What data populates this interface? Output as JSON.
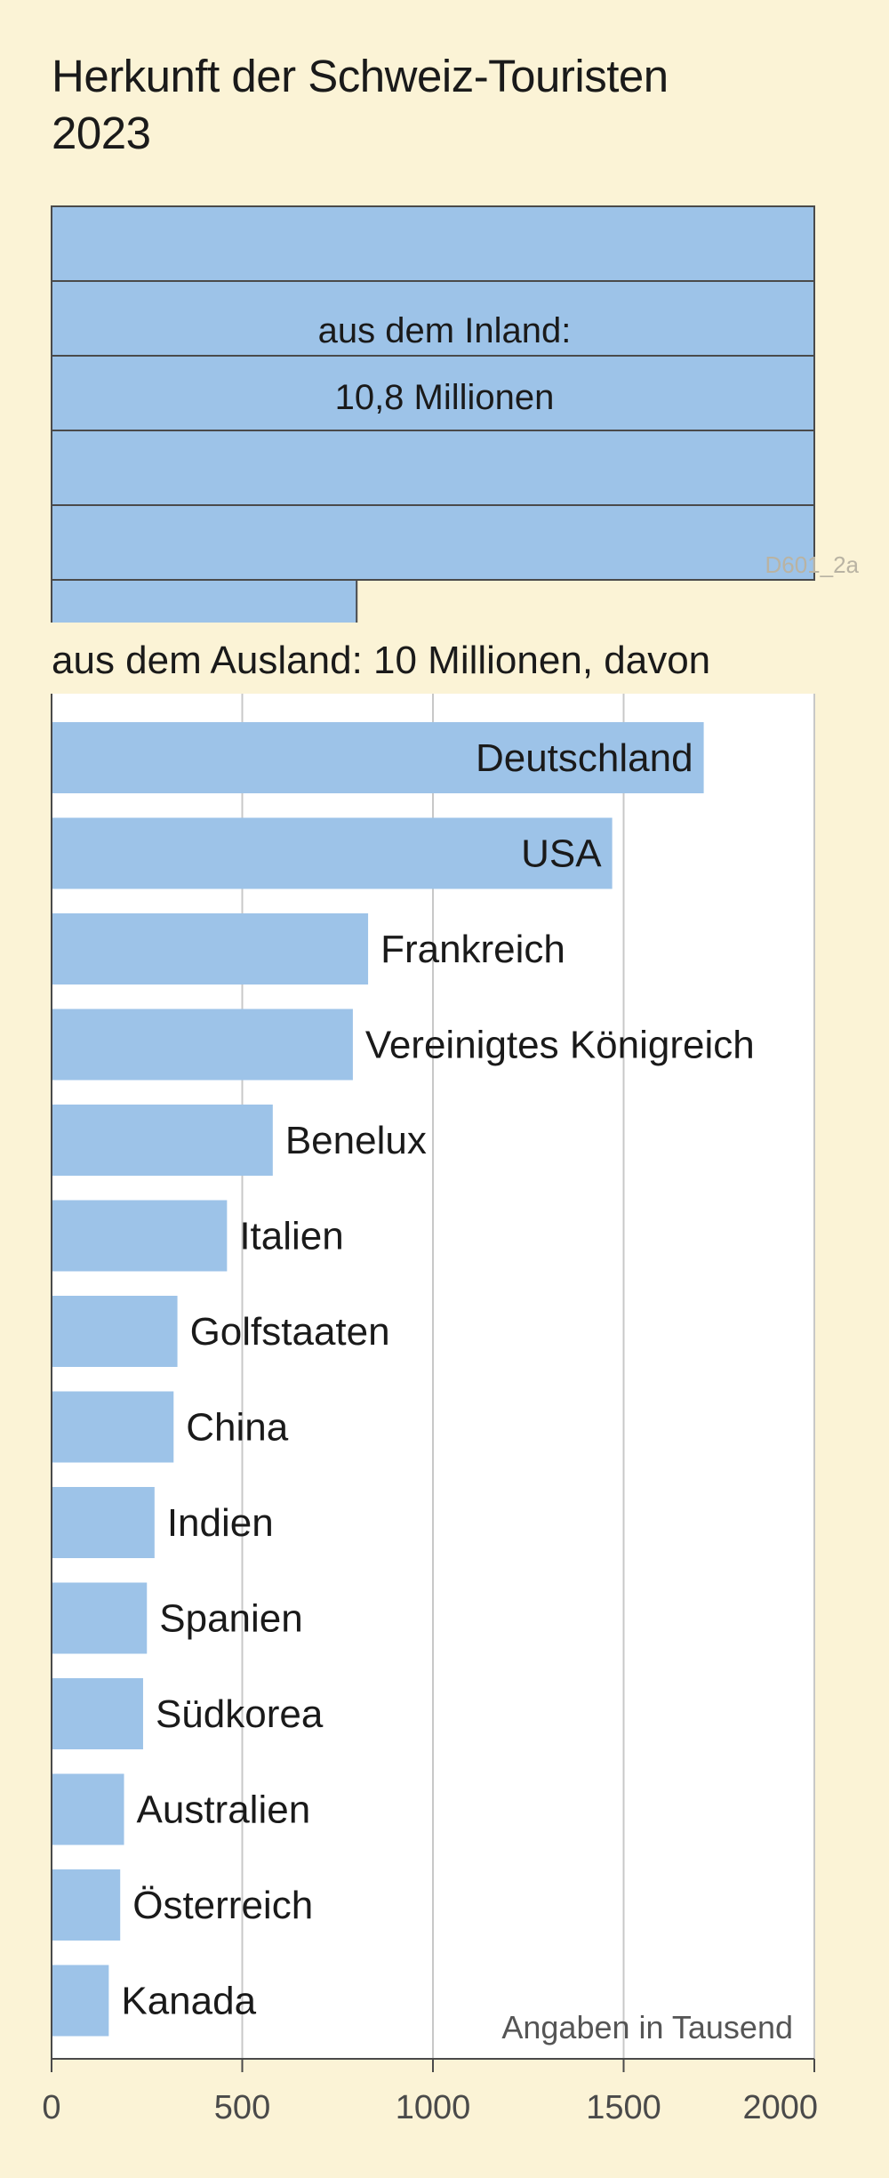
{
  "title": {
    "line1": "Herkunft der Schweiz-Touristen",
    "line2": "2023"
  },
  "inland": {
    "label_line1": "aus dem Inland:",
    "label_line2": "10,8 Millionen",
    "millions": 10.8
  },
  "source_code": "D601_2a",
  "colors": {
    "background": "#fbf3d6",
    "bar": "#9dc3e8",
    "bar_stroke": "#4a4a4a",
    "plot_background": "#ffffff",
    "grid": "#c8c8c8"
  },
  "chart_data": {
    "type": "bar",
    "orientation": "horizontal",
    "title": "aus dem Ausland: 10 Millionen, davon",
    "unit_note": "Angaben in Tausend",
    "categories": [
      "Deutschland",
      "USA",
      "Frankreich",
      "Vereinigtes Königreich",
      "Benelux",
      "Italien",
      "Golfstaaten",
      "China",
      "Indien",
      "Spanien",
      "Südkorea",
      "Australien",
      "Österreich",
      "Kanada"
    ],
    "values": [
      1710,
      1470,
      830,
      790,
      580,
      460,
      330,
      320,
      270,
      250,
      240,
      190,
      180,
      150
    ],
    "xlim": [
      0,
      2000
    ],
    "xticks": [
      0,
      500,
      1000,
      1500,
      2000
    ],
    "grid": true,
    "label_inside": [
      true,
      true,
      false,
      false,
      false,
      false,
      false,
      false,
      false,
      false,
      false,
      false,
      false,
      false
    ]
  }
}
